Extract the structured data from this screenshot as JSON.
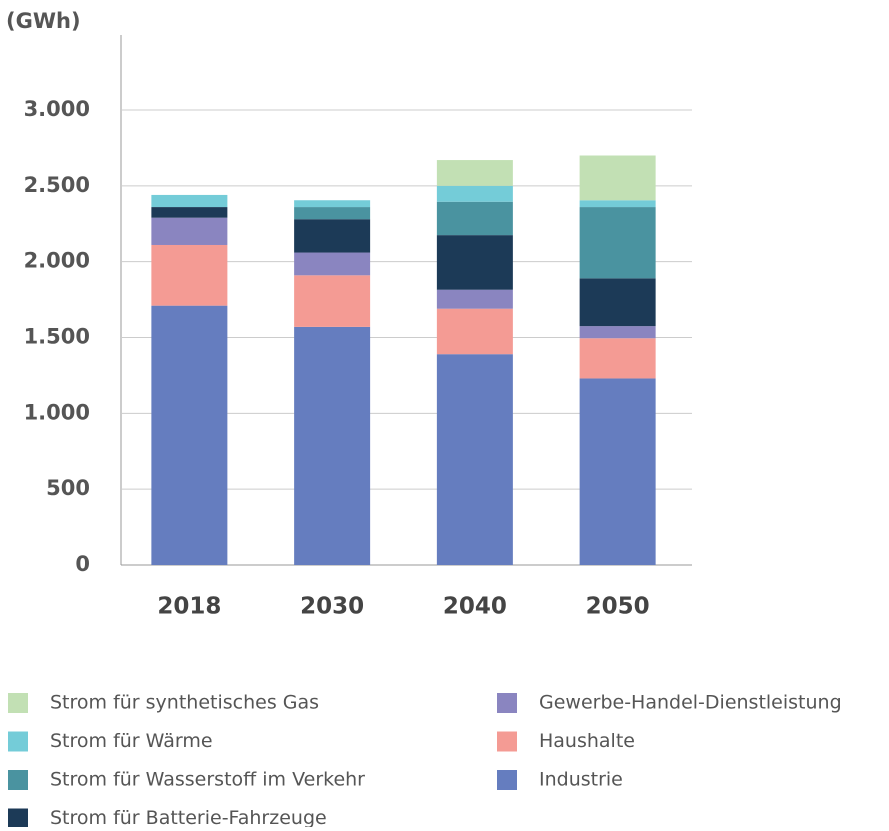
{
  "chart_data": {
    "type": "stacked_bar",
    "y_label": "(GWh)",
    "categories": [
      "2018",
      "2030",
      "2040",
      "2050"
    ],
    "series": [
      {
        "name": "Industrie",
        "color": "#657dbf",
        "values": [
          1710,
          1570,
          1390,
          1230
        ]
      },
      {
        "name": "Haushalte",
        "color": "#f49b94",
        "values": [
          400,
          340,
          300,
          265
        ]
      },
      {
        "name": "Gewerbe-Handel-Dienstleistung",
        "color": "#8a85c0",
        "values": [
          180,
          150,
          125,
          80
        ]
      },
      {
        "name": "Strom für Batterie-Fahrzeuge",
        "color": "#1c3a57",
        "values": [
          70,
          220,
          360,
          315
        ]
      },
      {
        "name": "Strom für Wasserstoff im Verkehr",
        "color": "#4a93a0",
        "values": [
          0,
          80,
          220,
          470
        ]
      },
      {
        "name": "Strom für Wärme",
        "color": "#74ccd8",
        "values": [
          80,
          45,
          105,
          45
        ]
      },
      {
        "name": "Strom für synthetisches Gas",
        "color": "#c2e0b4",
        "values": [
          0,
          0,
          170,
          295
        ]
      }
    ],
    "ylim": [
      0,
      3000
    ],
    "yticks": [
      0,
      500,
      {
        "value": 1000,
        "label": "1.000"
      },
      {
        "value": 1500,
        "label": "1.500"
      },
      {
        "value": 2000,
        "label": "2.000"
      },
      {
        "value": 2500,
        "label": "2.500"
      },
      {
        "value": 3000,
        "label": "3.000"
      }
    ],
    "grid": true
  }
}
